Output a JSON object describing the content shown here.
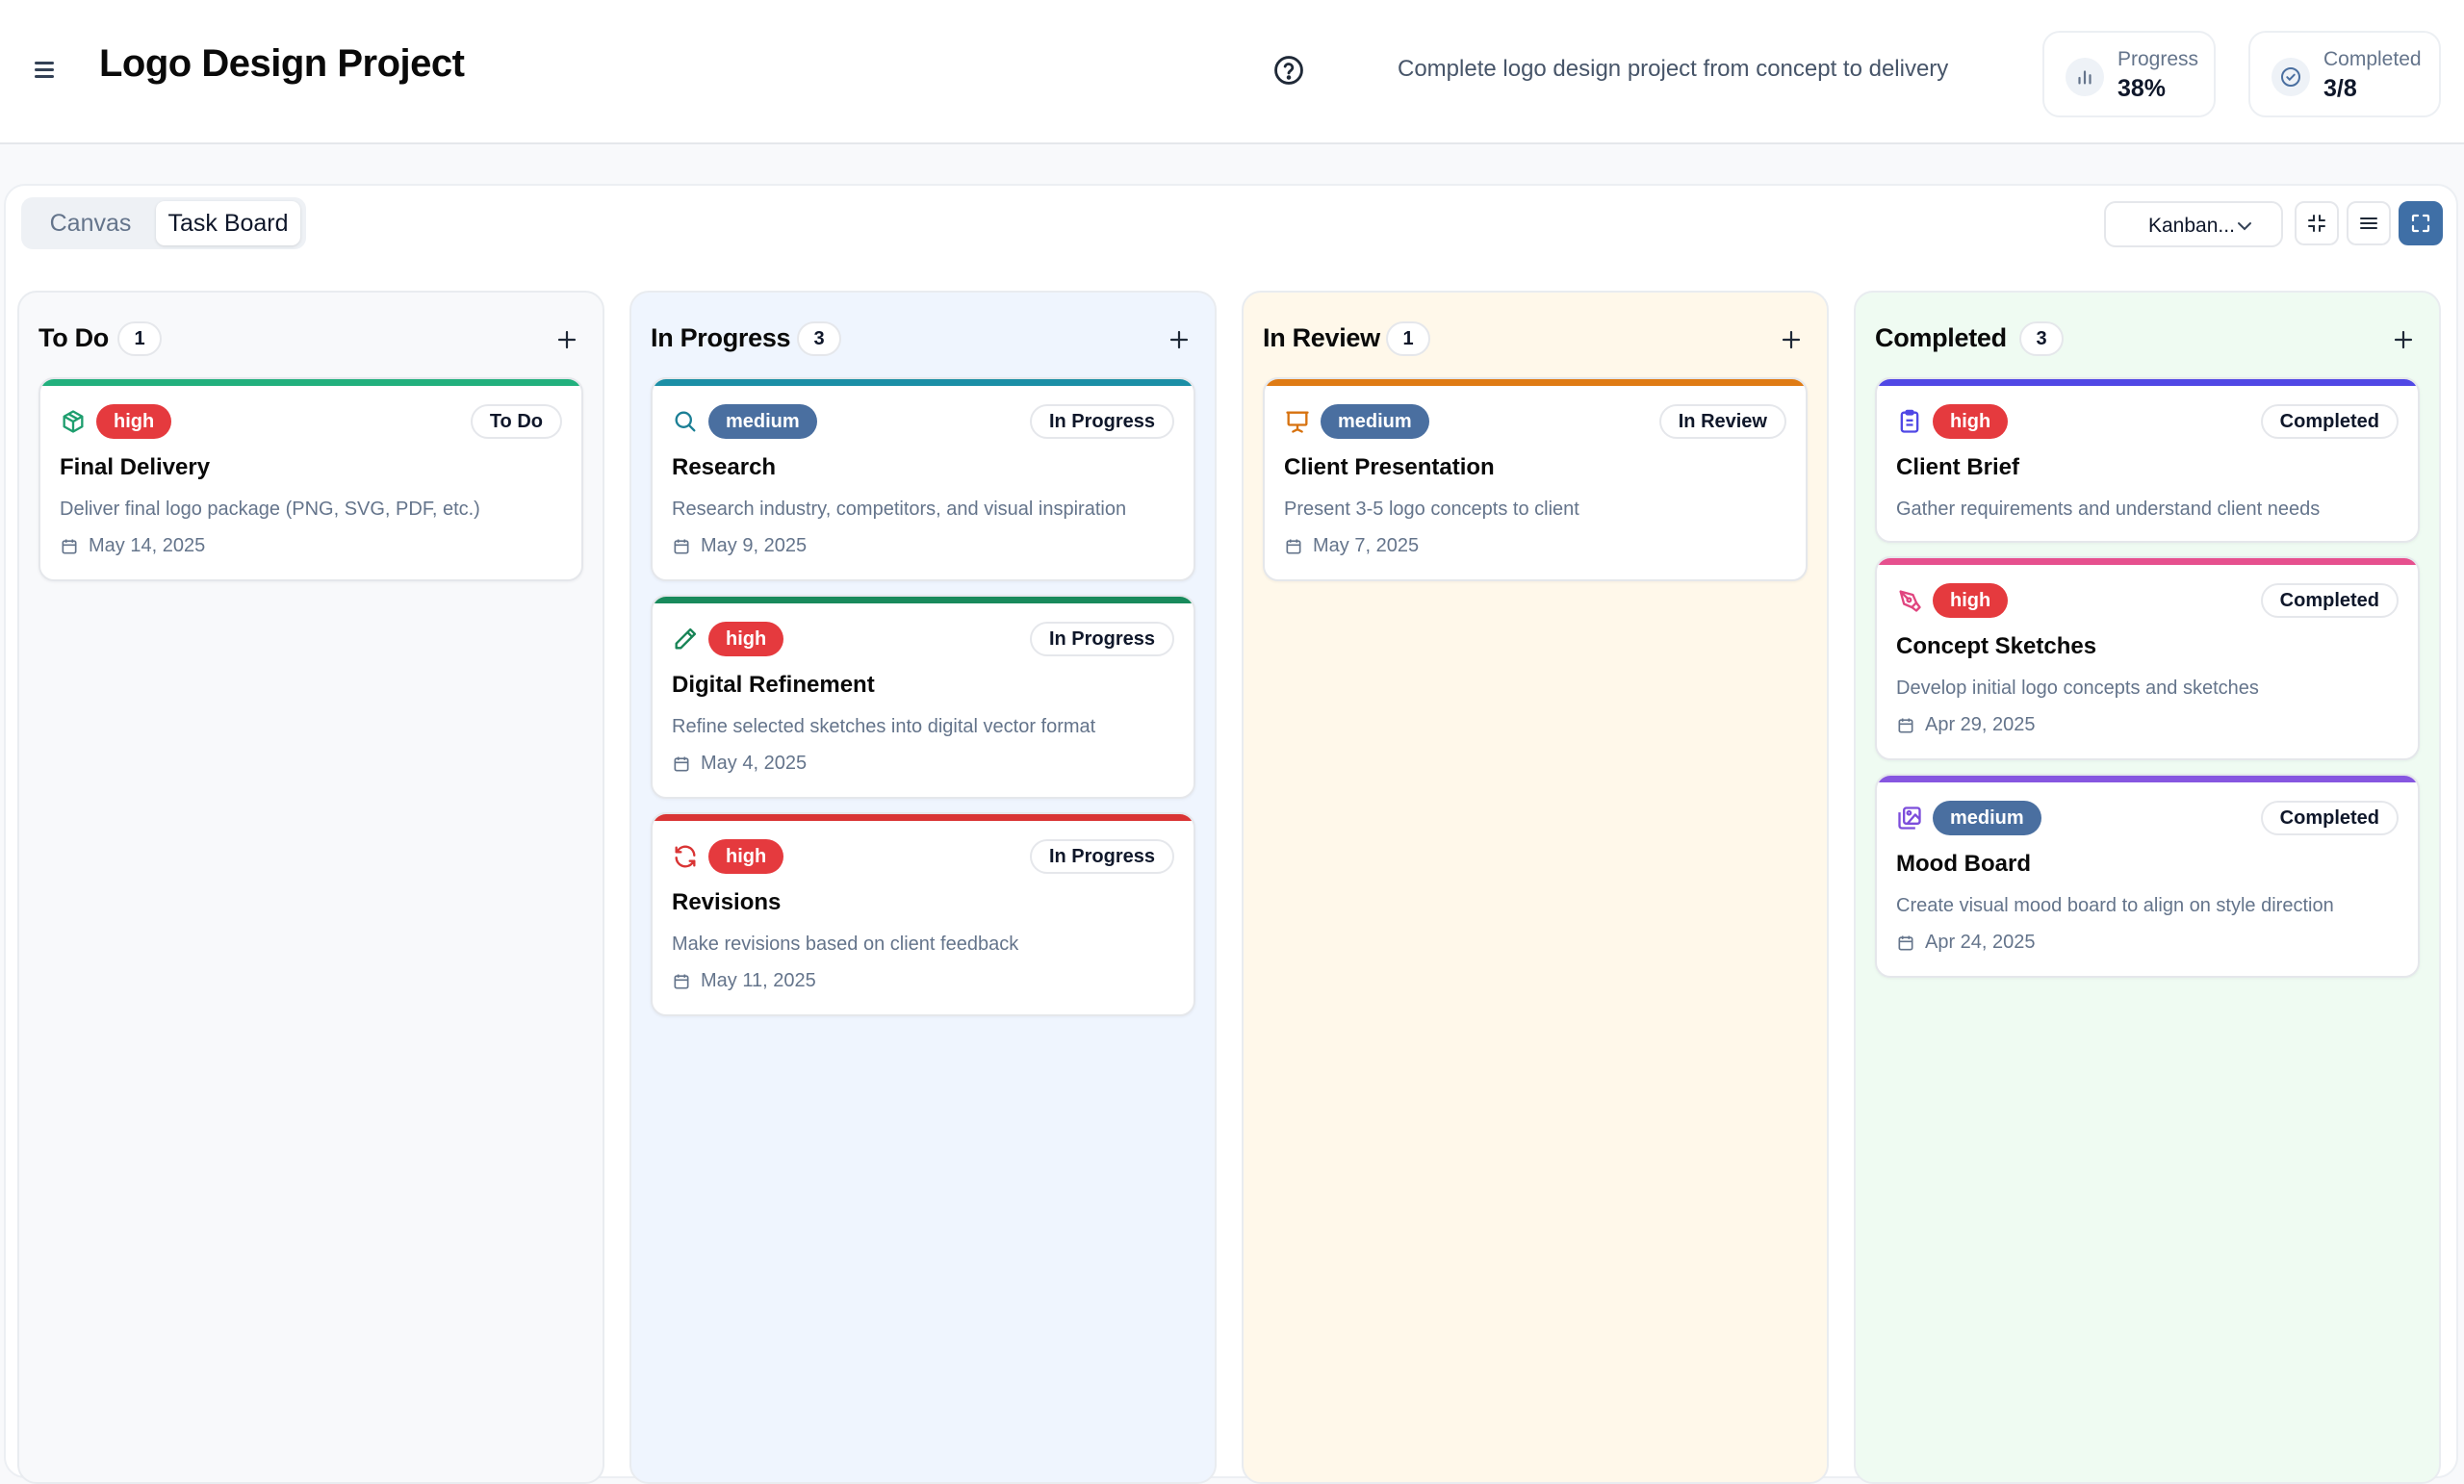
{
  "header": {
    "title": "Logo Design Project",
    "description": "Complete logo design project from concept to delivery",
    "stats": [
      {
        "label": "Progress",
        "value": "38%",
        "icon": "bar-chart-icon"
      },
      {
        "label": "Completed",
        "value": "3/8",
        "icon": "check-circle-icon"
      }
    ]
  },
  "toolbar": {
    "tabs": [
      {
        "label": "Canvas"
      },
      {
        "label": "Task Board"
      }
    ],
    "active_tab": "Task Board",
    "view_select": "Kanban..."
  },
  "colors": {
    "high": "#e53a3e",
    "medium": "#4a6fa0",
    "accent": "#3f6fa6"
  },
  "columns": [
    {
      "title": "To Do",
      "count": "1",
      "bg": "#f8f9fb",
      "cards": [
        {
          "priority": "high",
          "status": "To Do",
          "title": "Final Delivery",
          "description": "Deliver final logo package (PNG, SVG, PDF, etc.)",
          "date": "May 14, 2025",
          "icon": "package-icon",
          "bar_color": "#22b07d",
          "icon_color": "#1e9e6e"
        }
      ]
    },
    {
      "title": "In Progress",
      "count": "3",
      "bg": "#eff5fe",
      "cards": [
        {
          "priority": "medium",
          "status": "In Progress",
          "title": "Research",
          "description": "Research industry, competitors, and visual inspiration",
          "date": "May 9, 2025",
          "icon": "search-icon",
          "bar_color": "#1b8fa6",
          "icon_color": "#1b7f95"
        },
        {
          "priority": "high",
          "status": "In Progress",
          "title": "Digital Refinement",
          "description": "Refine selected sketches into digital vector format",
          "date": "May 4, 2025",
          "icon": "pencil-icon",
          "bar_color": "#188a5c",
          "icon_color": "#168355"
        },
        {
          "priority": "high",
          "status": "In Progress",
          "title": "Revisions",
          "description": "Make revisions based on client feedback",
          "date": "May 11, 2025",
          "icon": "refresh-icon",
          "bar_color": "#d93434",
          "icon_color": "#d93434"
        }
      ]
    },
    {
      "title": "In Review",
      "count": "1",
      "bg": "#fff8ea",
      "cards": [
        {
          "priority": "medium",
          "status": "In Review",
          "title": "Client Presentation",
          "description": "Present 3-5 logo concepts to client",
          "date": "May 7, 2025",
          "icon": "presentation-icon",
          "bar_color": "#df7b14",
          "icon_color": "#d7720f"
        }
      ]
    },
    {
      "title": "Completed",
      "count": "3",
      "bg": "#effbf2",
      "cards": [
        {
          "priority": "high",
          "status": "Completed",
          "title": "Client Brief",
          "description": "Gather requirements and understand client needs",
          "date": "",
          "icon": "clipboard-icon",
          "bar_color": "#5048e5",
          "icon_color": "#5048e5"
        },
        {
          "priority": "high",
          "status": "Completed",
          "title": "Concept Sketches",
          "description": "Develop initial logo concepts and sketches",
          "date": "Apr 29, 2025",
          "icon": "pen-tool-icon",
          "bar_color": "#e6508e",
          "icon_color": "#e0457f"
        },
        {
          "priority": "medium",
          "status": "Completed",
          "title": "Mood Board",
          "description": "Create visual mood board to align on style direction",
          "date": "Apr 24, 2025",
          "icon": "images-icon",
          "bar_color": "#8656e0",
          "icon_color": "#7c4ddb"
        }
      ]
    }
  ]
}
